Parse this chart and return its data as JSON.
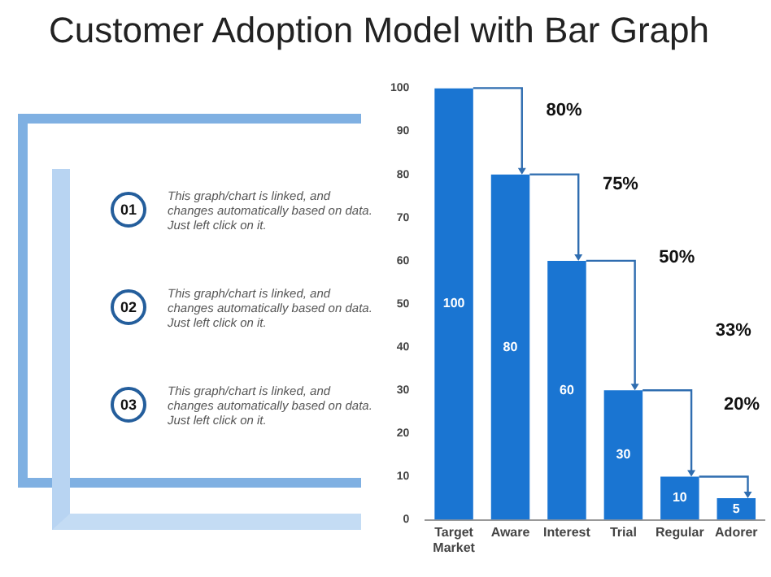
{
  "chart_data": [
    {
      "type": "other",
      "annotations": [
        "01",
        "This graph/chart is linked, and changes automatically based on data. Just left click on it.",
        "02",
        "This graph/chart is linked, and changes automatically based on data. Just left click on it.",
        "03",
        "This graph/chart is linked, and changes automatically based on data. Just left click on it."
      ]
    },
    {
      "type": "bar",
      "title": "Customer Adoption Model with Bar Graph",
      "categories": [
        "Target Market",
        "Aware",
        "Interest",
        "Trial",
        "Regular",
        "Adorer"
      ],
      "values": [
        100,
        80,
        60,
        30,
        10,
        5
      ],
      "color": "#1a75d2",
      "ylim": [
        0,
        100
      ],
      "yticks": [
        0,
        10,
        20,
        30,
        40,
        50,
        60,
        70,
        80,
        90,
        100
      ],
      "data_labels": true,
      "grid": false,
      "legend": false,
      "annotations": [
        "80%",
        "75%",
        "50%",
        "33%",
        "20%"
      ]
    }
  ]
}
